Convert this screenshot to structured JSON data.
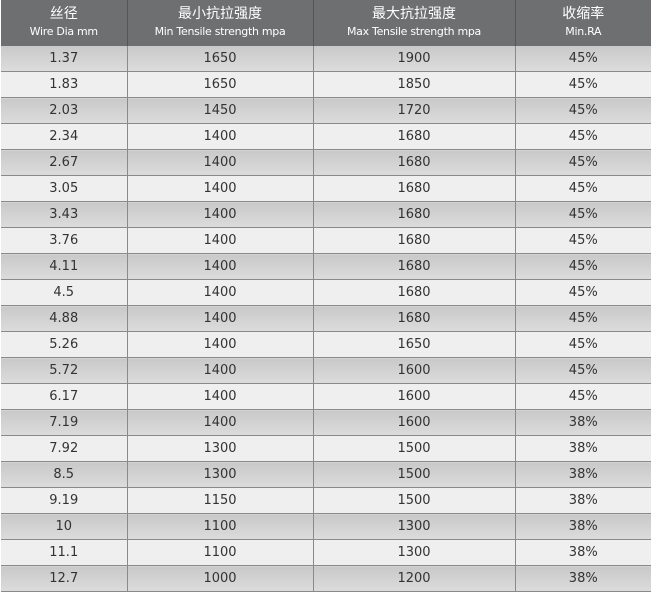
{
  "headers": [
    {
      "zh": "丝径",
      "en": "Wire Dia mm"
    },
    {
      "zh": "最小抗拉强度",
      "en": "Min Tensile strength mpa"
    },
    {
      "zh": "最大抗拉强度",
      "en": "Max Tensile strength mpa"
    },
    {
      "zh": "收缩率",
      "en": "Min.RA"
    }
  ],
  "rows": [
    [
      "1.37",
      "1650",
      "1900",
      "45%"
    ],
    [
      "1.83",
      "1650",
      "1850",
      "45%"
    ],
    [
      "2.03",
      "1450",
      "1720",
      "45%"
    ],
    [
      "2.34",
      "1400",
      "1680",
      "45%"
    ],
    [
      "2.67",
      "1400",
      "1680",
      "45%"
    ],
    [
      "3.05",
      "1400",
      "1680",
      "45%"
    ],
    [
      "3.43",
      "1400",
      "1680",
      "45%"
    ],
    [
      "3.76",
      "1400",
      "1680",
      "45%"
    ],
    [
      "4.11",
      "1400",
      "1680",
      "45%"
    ],
    [
      "4.5",
      "1400",
      "1680",
      "45%"
    ],
    [
      "4.88",
      "1400",
      "1680",
      "45%"
    ],
    [
      "5.26",
      "1400",
      "1650",
      "45%"
    ],
    [
      "5.72",
      "1400",
      "1600",
      "45%"
    ],
    [
      "6.17",
      "1400",
      "1600",
      "45%"
    ],
    [
      "7.19",
      "1400",
      "1600",
      "38%"
    ],
    [
      "7.92",
      "1300",
      "1500",
      "38%"
    ],
    [
      "8.5",
      "1300",
      "1500",
      "38%"
    ],
    [
      "9.19",
      "1150",
      "1500",
      "38%"
    ],
    [
      "10",
      "1100",
      "1300",
      "38%"
    ],
    [
      "11.1",
      "1100",
      "1300",
      "38%"
    ],
    [
      "12.7",
      "1000",
      "1200",
      "38%"
    ]
  ]
}
